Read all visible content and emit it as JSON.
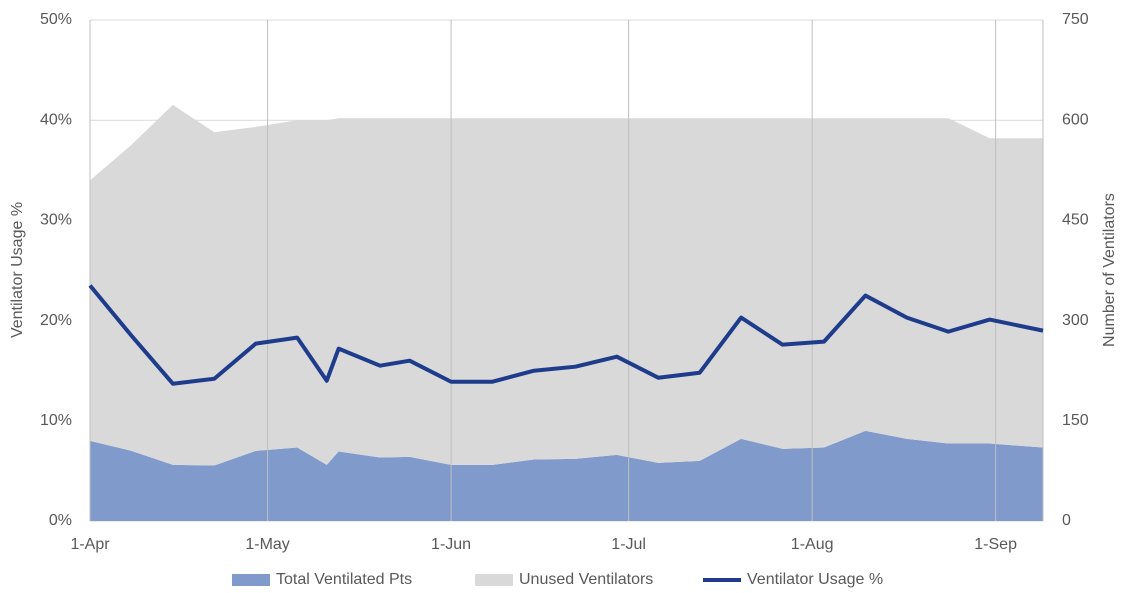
{
  "chart_data": {
    "type": "combo",
    "ylabel": "Ventilator Usage %",
    "y2label": "Number of Ventilators",
    "x": [
      0,
      7,
      14,
      21,
      28,
      35,
      40,
      42,
      49,
      54,
      61,
      68,
      75,
      82,
      89,
      96,
      103,
      110,
      117,
      124,
      131,
      138,
      145,
      152,
      161
    ],
    "xlim": [
      0,
      161
    ],
    "xticks": [
      {
        "value": 0,
        "label": "1-Apr"
      },
      {
        "value": 30,
        "label": "1-May"
      },
      {
        "value": 61,
        "label": "1-Jun"
      },
      {
        "value": 91,
        "label": "1-Jul"
      },
      {
        "value": 122,
        "label": "1-Aug"
      },
      {
        "value": 153,
        "label": "1-Sep"
      }
    ],
    "ylim": [
      0,
      50
    ],
    "yticks": [
      {
        "value": 0,
        "label": "0%"
      },
      {
        "value": 10,
        "label": "10%"
      },
      {
        "value": 20,
        "label": "20%"
      },
      {
        "value": 30,
        "label": "30%"
      },
      {
        "value": 40,
        "label": "40%"
      },
      {
        "value": 50,
        "label": "50%"
      }
    ],
    "y2lim": [
      0,
      750
    ],
    "y2ticks": [
      0,
      150,
      300,
      450,
      600,
      750
    ],
    "grid": true,
    "legend": "bottom",
    "series": [
      {
        "name": "Total Ventilated Pts",
        "type": "area",
        "axis": "y2",
        "color": "#7f9acb",
        "values": [
          120,
          105,
          84,
          83,
          105,
          110,
          84,
          104,
          95,
          96,
          84,
          84,
          92,
          93,
          99,
          87,
          90,
          123,
          108,
          110,
          135,
          123,
          116,
          116,
          110
        ]
      },
      {
        "name": "Unused Ventilators",
        "type": "area",
        "axis": "y2",
        "color": "#d9d9d9",
        "values": [
          390,
          458,
          539,
          499,
          485,
          490,
          516,
          499,
          508,
          507,
          519,
          519,
          511,
          510,
          504,
          516,
          513,
          480,
          495,
          493,
          468,
          480,
          487,
          457,
          463
        ]
      },
      {
        "name": "Ventilator Usage %",
        "type": "line",
        "axis": "y",
        "color": "#1f3c8c",
        "values": [
          23.5,
          18.5,
          13.7,
          14.2,
          17.7,
          18.3,
          14.0,
          17.2,
          15.5,
          16.0,
          13.9,
          13.9,
          15.0,
          15.4,
          16.4,
          14.3,
          14.8,
          20.3,
          17.6,
          17.9,
          22.5,
          20.3,
          18.9,
          20.1,
          19.0
        ]
      }
    ]
  }
}
